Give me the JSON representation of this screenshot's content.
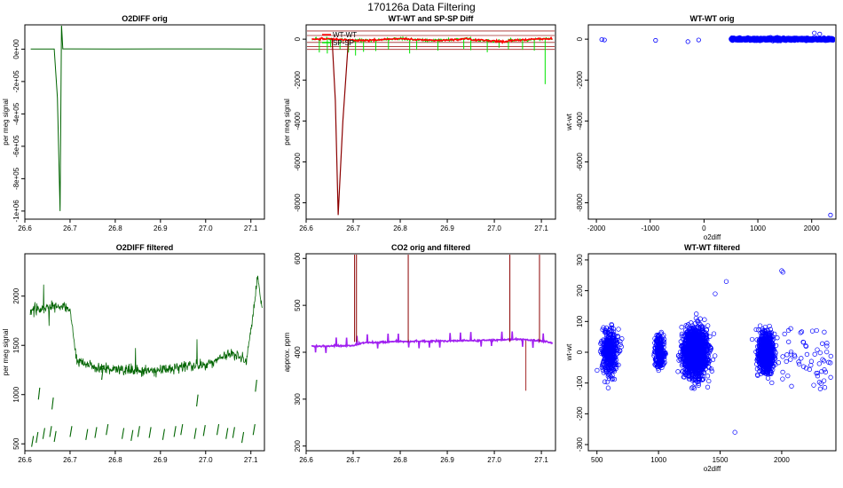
{
  "title": "170126a   Data Filtering",
  "colors": {
    "dark_green": "#006400",
    "light_green": "#00e600",
    "red": "#ff0000",
    "dark_red": "#8b0000",
    "brown": "#a52a2a",
    "purple": "#a020f0",
    "blue": "#0000ff",
    "axis": "#000000"
  },
  "chart_data": [
    {
      "id": "p1",
      "type": "line",
      "title": "O2DIFF orig",
      "xlabel": "",
      "ylabel": "per meg signal",
      "xlim": [
        26.6,
        27.13
      ],
      "ylim": [
        -1050000.0,
        150000.0
      ],
      "xticks": [
        26.6,
        26.7,
        26.8,
        26.9,
        27.0,
        27.1
      ],
      "xtick_labels": [
        "26.6",
        "26.7",
        "26.8",
        "26.9",
        "27.0",
        "27.1"
      ],
      "yticks": [
        0,
        -200000,
        -400000,
        -600000,
        -800000,
        -1000000
      ],
      "ytick_labels": [
        "0e+00",
        "-2e+05",
        "-4e+05",
        "-6e+05",
        "-8e+05",
        "-1e+06"
      ],
      "series": [
        {
          "color": "#006400",
          "x": [
            26.613,
            26.66,
            26.665,
            26.672,
            26.678,
            26.681,
            26.684,
            26.7,
            26.8,
            26.9,
            27.0,
            27.1,
            27.125
          ],
          "y": [
            1200,
            1200,
            1200,
            -300000,
            -1000000,
            150000,
            1500,
            1300,
            1200,
            1300,
            1300,
            1200,
            1200
          ]
        }
      ]
    },
    {
      "id": "p2",
      "type": "line",
      "title": "WT-WT and SP-SP Diff",
      "xlabel": "",
      "ylabel": "per meg signal",
      "xlim": [
        26.6,
        27.13
      ],
      "ylim": [
        -8800,
        700
      ],
      "xticks": [
        26.6,
        26.7,
        26.8,
        26.9,
        27.0,
        27.1
      ],
      "xtick_labels": [
        "26.6",
        "26.7",
        "26.8",
        "26.9",
        "27.0",
        "27.1"
      ],
      "yticks": [
        0,
        -2000,
        -4000,
        -6000,
        -8000
      ],
      "ytick_labels": [
        "0",
        "-2000",
        "-4000",
        "-6000",
        "-8000"
      ],
      "legend": {
        "position": "top-left",
        "entries": [
          "WT-WT",
          "SP-SP"
        ]
      },
      "reference_lines": [
        400,
        180,
        -160,
        -360,
        -500
      ],
      "sp_spikes": {
        "color": "#00e600",
        "x": [
          26.628,
          26.645,
          26.652,
          26.672,
          26.69,
          26.705,
          26.722,
          26.748,
          26.775,
          26.82,
          26.835,
          26.88,
          26.935,
          26.95,
          26.985,
          27.01,
          27.03,
          27.06,
          27.085,
          27.108
        ],
        "y": [
          -650,
          -700,
          -400,
          -500,
          -650,
          -800,
          -620,
          -580,
          -500,
          -700,
          -520,
          -560,
          -480,
          -540,
          -640,
          -420,
          -500,
          -520,
          -560,
          -2200
        ]
      },
      "wt_dip": {
        "color": "#8b0000",
        "x": [
          26.655,
          26.662,
          26.668,
          26.678,
          26.69
        ],
        "y": [
          50,
          -3000,
          -8600,
          -4000,
          0
        ]
      }
    },
    {
      "id": "p3",
      "type": "scatter",
      "title": "WT-WT orig",
      "xlabel": "o2diff",
      "ylabel": "wt-wt",
      "xlim": [
        -2150,
        2450
      ],
      "ylim": [
        -8800,
        700
      ],
      "xticks": [
        -2000,
        -1000,
        0,
        1000,
        2000
      ],
      "xtick_labels": [
        "-2000",
        "-1000",
        "0",
        "1000",
        "2000"
      ],
      "yticks": [
        0,
        -2000,
        -4000,
        -6000,
        -8000
      ],
      "ytick_labels": [
        "0",
        "-2000",
        "-4000",
        "-6000",
        "-8000"
      ],
      "outliers": {
        "x": [
          -1900,
          -1850,
          -900,
          -300,
          -100,
          2050,
          2150,
          2350
        ],
        "y": [
          -20,
          -40,
          -60,
          -120,
          -40,
          300,
          250,
          -8600
        ]
      },
      "cluster": {
        "x_range": [
          500,
          2400
        ],
        "y_range": [
          -150,
          150
        ]
      }
    },
    {
      "id": "p4",
      "type": "line",
      "title": "O2DIFF filtered",
      "xlabel": "",
      "ylabel": "per meg signal",
      "xlim": [
        26.6,
        27.13
      ],
      "ylim": [
        430,
        2430
      ],
      "xticks": [
        26.6,
        26.7,
        26.8,
        26.9,
        27.0,
        27.1
      ],
      "xtick_labels": [
        "26.6",
        "26.7",
        "26.8",
        "26.9",
        "27.0",
        "27.1"
      ],
      "yticks": [
        500,
        1000,
        1500,
        2000
      ],
      "ytick_labels": [
        "500",
        "1000",
        "1500",
        "2000"
      ],
      "series": [
        {
          "color": "#006400",
          "name": "",
          "x": [
            26.61,
            26.65,
            26.69,
            26.7,
            26.715,
            26.75,
            26.8,
            26.85,
            26.9,
            26.95,
            27.0,
            27.03,
            27.06,
            27.09,
            27.1,
            27.115,
            27.125
          ],
          "y": [
            1850,
            1880,
            1900,
            1850,
            1350,
            1280,
            1260,
            1240,
            1250,
            1290,
            1300,
            1380,
            1420,
            1350,
            1650,
            2200,
            1850
          ]
        }
      ],
      "low_segments": {
        "x": [
          26.615,
          26.625,
          26.64,
          26.655,
          26.665,
          26.7,
          26.735,
          26.755,
          26.78,
          26.815,
          26.835,
          26.85,
          26.875,
          26.905,
          26.93,
          26.945,
          26.975,
          26.995,
          27.025,
          27.045,
          27.06,
          27.08,
          27.105
        ],
        "y": [
          520,
          560,
          600,
          620,
          570,
          620,
          590,
          610,
          640,
          600,
          580,
          620,
          610,
          590,
          620,
          640,
          600,
          630,
          640,
          600,
          610,
          560,
          640
        ]
      }
    },
    {
      "id": "p5",
      "type": "line",
      "title": "CO2 orig and filtered",
      "xlabel": "",
      "ylabel": "approx. ppm",
      "xlim": [
        26.6,
        27.13
      ],
      "ylim": [
        190,
        610
      ],
      "xticks": [
        26.6,
        26.7,
        26.8,
        26.9,
        27.0,
        27.1
      ],
      "xtick_labels": [
        "26.6",
        "26.7",
        "26.8",
        "26.9",
        "27.0",
        "27.1"
      ],
      "yticks": [
        200,
        300,
        400,
        500,
        600
      ],
      "ytick_labels": [
        "200",
        "300",
        "400",
        "500",
        "600"
      ],
      "baseline": {
        "color": "#a020f0",
        "x": [
          26.61,
          26.7,
          26.72,
          26.8,
          26.9,
          27.0,
          27.05,
          27.1,
          27.125
        ],
        "y": [
          413,
          414,
          420,
          423,
          424,
          426,
          428,
          424,
          420
        ]
      },
      "red_spikes": {
        "color": "#8b0000",
        "x": [
          26.703,
          26.707,
          26.817,
          27.033,
          27.096
        ],
        "y": [
          620,
          620,
          620,
          620,
          620
        ]
      },
      "brown_dip": {
        "color": "#a52a2a",
        "x": [
          27.067
        ],
        "y": [
          318
        ]
      }
    },
    {
      "id": "p6",
      "type": "scatter",
      "title": "WT-WT filtered",
      "xlabel": "o2diff",
      "ylabel": "wt-wt",
      "xlim": [
        430,
        2440
      ],
      "ylim": [
        -320,
        320
      ],
      "xticks": [
        500,
        1000,
        1500,
        2000
      ],
      "xtick_labels": [
        "500",
        "1000",
        "1500",
        "2000"
      ],
      "yticks": [
        -300,
        -200,
        -100,
        0,
        100,
        200,
        300
      ],
      "ytick_labels": [
        "-300",
        "-200",
        "-100",
        "0",
        "100",
        "200",
        "300"
      ],
      "clusters": [
        {
          "x_center": 600,
          "x_spread": 55,
          "y_spread": 60,
          "n": 420
        },
        {
          "x_center": 1010,
          "x_spread": 35,
          "y_spread": 45,
          "n": 220
        },
        {
          "x_center": 1300,
          "x_spread": 80,
          "y_spread": 65,
          "n": 1600
        },
        {
          "x_center": 1870,
          "x_spread": 55,
          "y_spread": 55,
          "n": 650
        }
      ],
      "outliers": {
        "x": [
          1550,
          1620,
          2000,
          2010,
          1460
        ],
        "y": [
          230,
          -260,
          265,
          260,
          190
        ]
      }
    }
  ]
}
